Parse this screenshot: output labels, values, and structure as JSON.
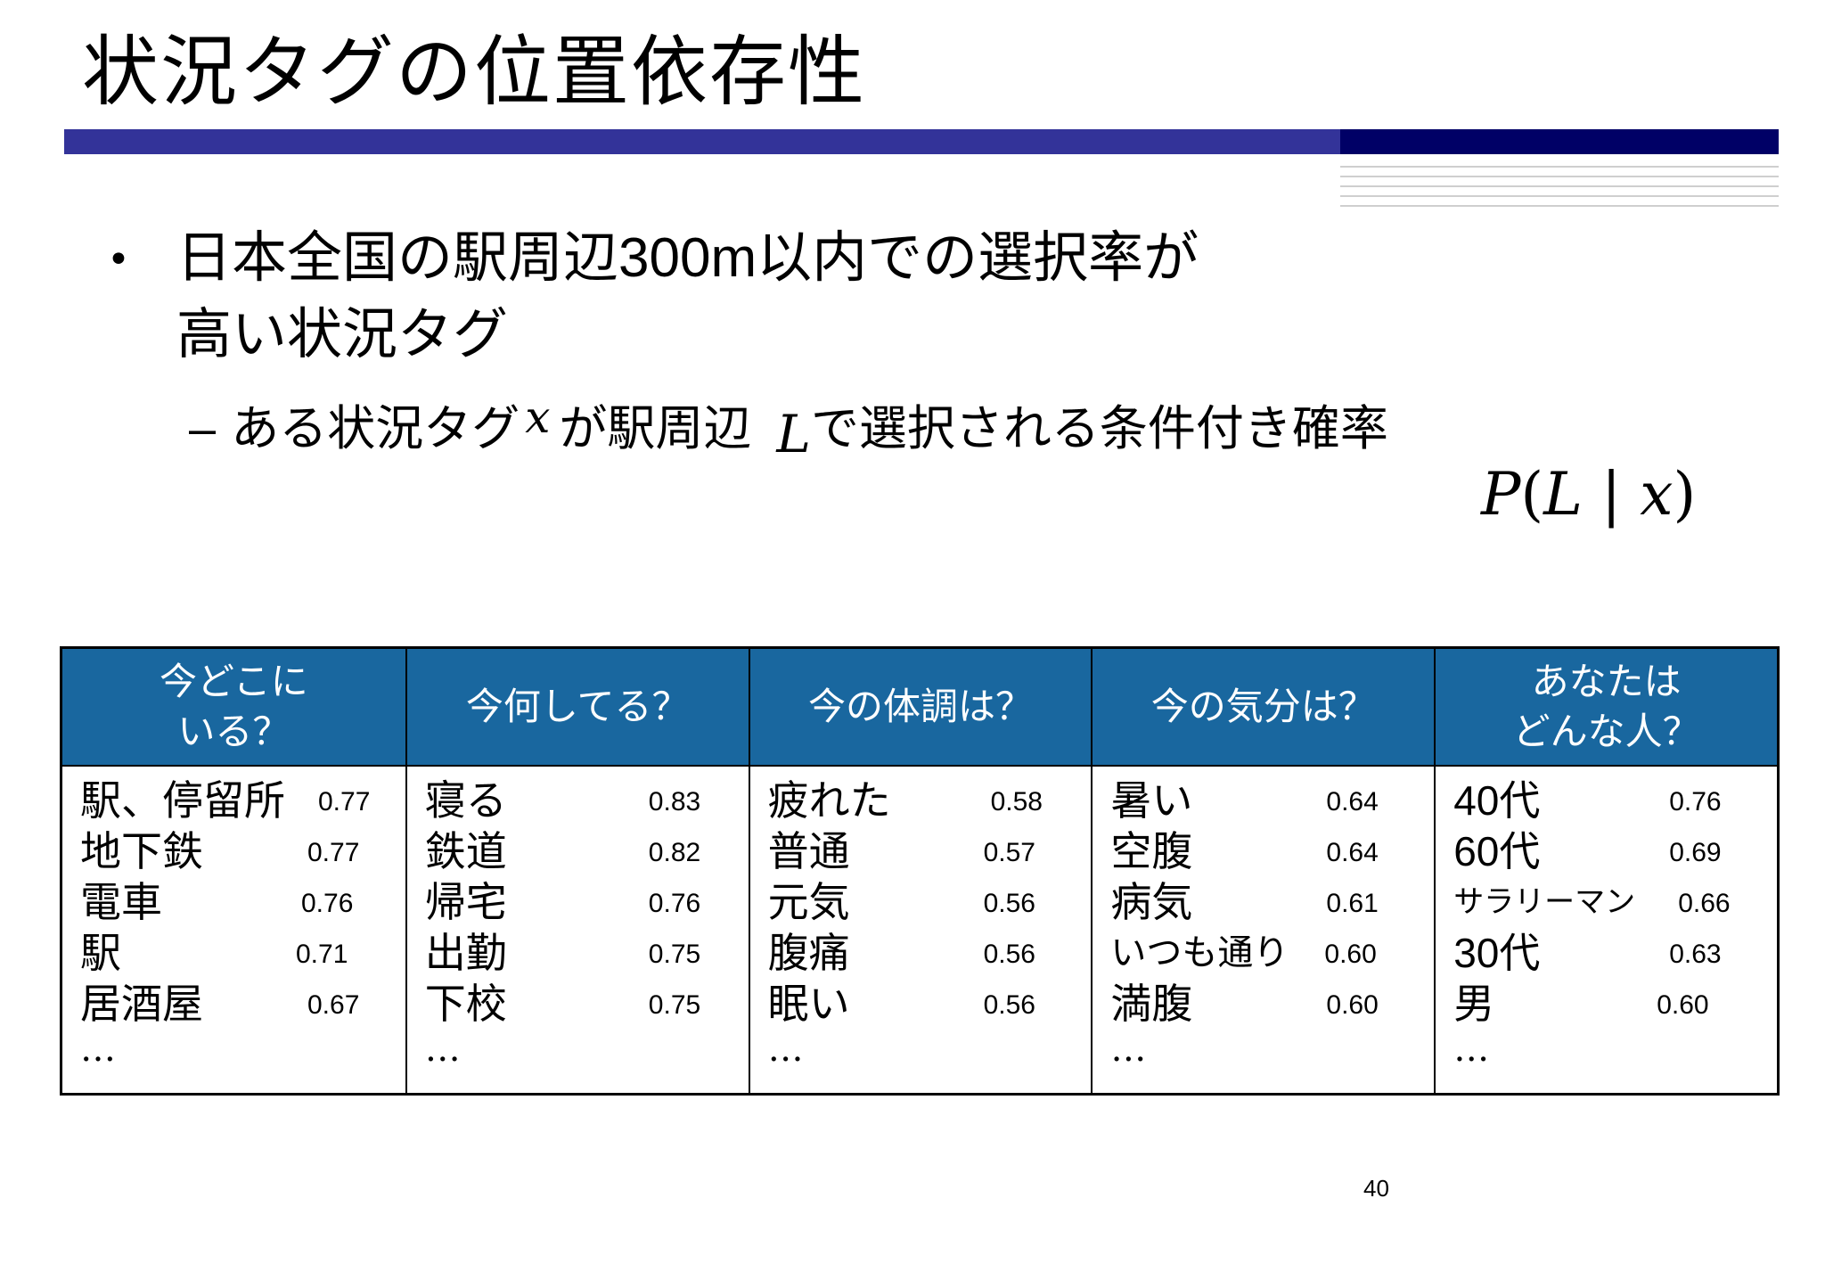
{
  "slide": {
    "title": "状況タグの位置依存性",
    "page_number": "40"
  },
  "bullet": {
    "symbol": "•",
    "line1_pre": "日本全国の駅周辺",
    "line1_num": "300m",
    "line1_post": "以内での選択率が",
    "line2": "高い状況タグ"
  },
  "sub_bullet": {
    "dash": "–",
    "text1": "ある状況タグ",
    "var_x": "x",
    "text2": "が駅周辺",
    "var_L": "L",
    "text3": "で選択される条件付き確率",
    "formula_P": "P",
    "formula_open": "(",
    "formula_L": "L",
    "formula_bar": " | ",
    "formula_x": "x",
    "formula_close": ")"
  },
  "table": {
    "columns": [
      {
        "header": "今どこに\nいる？",
        "rows": [
          {
            "label": "駅、停留所",
            "value": "0.77"
          },
          {
            "label": "地下鉄",
            "value": "0.77"
          },
          {
            "label": "電車",
            "value": "0.76"
          },
          {
            "label": "駅",
            "value": "0.71"
          },
          {
            "label": "居酒屋",
            "value": "0.67"
          }
        ],
        "more": "…"
      },
      {
        "header": "今何してる？",
        "rows": [
          {
            "label": "寝る",
            "value": "0.83"
          },
          {
            "label": "鉄道",
            "value": "0.82"
          },
          {
            "label": "帰宅",
            "value": "0.76"
          },
          {
            "label": "出勤",
            "value": "0.75"
          },
          {
            "label": "下校",
            "value": "0.75"
          }
        ],
        "more": "…"
      },
      {
        "header": "今の体調は？",
        "rows": [
          {
            "label": "疲れた",
            "value": "0.58"
          },
          {
            "label": "普通",
            "value": "0.57"
          },
          {
            "label": "元気",
            "value": "0.56"
          },
          {
            "label": "腹痛",
            "value": "0.56"
          },
          {
            "label": "眠い",
            "value": "0.56"
          }
        ],
        "more": "…"
      },
      {
        "header": "今の気分は？",
        "rows": [
          {
            "label": "暑い",
            "value": "0.64"
          },
          {
            "label": "空腹",
            "value": "0.64"
          },
          {
            "label": "病気",
            "value": "0.61"
          },
          {
            "label": "いつも通り",
            "value": "0.60"
          },
          {
            "label": "満腹",
            "value": "0.60"
          }
        ],
        "more": "…"
      },
      {
        "header": "あなたは\nどんな人？",
        "rows": [
          {
            "label": "40代",
            "value": "0.76"
          },
          {
            "label": "60代",
            "value": "0.69"
          },
          {
            "label": "サラリーマン",
            "value": "0.66"
          },
          {
            "label": "30代",
            "value": "0.63"
          },
          {
            "label": "男",
            "value": "0.60"
          }
        ],
        "more": "…"
      }
    ]
  },
  "colors": {
    "title_bar": "#333399",
    "title_bar_dark": "#000066",
    "table_header_bg": "#19679f",
    "table_header_text": "#ffffff"
  }
}
